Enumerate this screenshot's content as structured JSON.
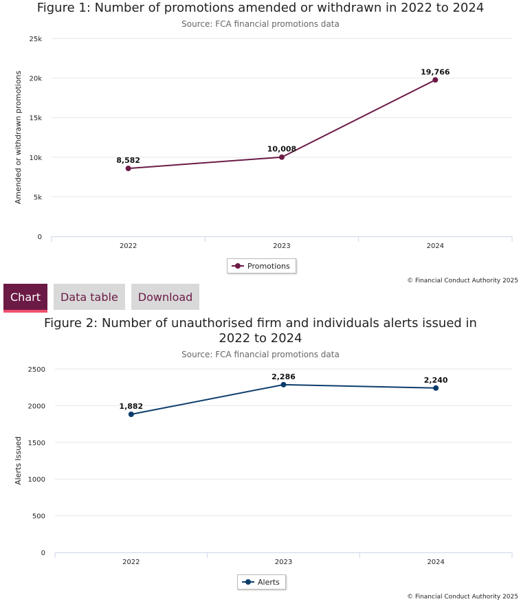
{
  "figure1": {
    "title": "Figure 1: Number of promotions amended or withdrawn in 2022 to 2024",
    "subtitle": "Source: FCA financial promotions data",
    "credit": "© Financial Conduct Authority 2025",
    "legend_label": "Promotions"
  },
  "tabs": {
    "chart": "Chart",
    "data_table": "Data table",
    "download": "Download"
  },
  "figure2": {
    "title_line1": "Figure 2: Number of unauthorised firm and individuals alerts issued in",
    "title_line2": "2022 to 2024",
    "subtitle": "Source: FCA financial promotions data",
    "credit": "© Financial Conduct Authority 2025",
    "legend_label": "Alerts"
  },
  "chart_data": [
    {
      "type": "line",
      "title": "Figure 1: Number of promotions amended or withdrawn in 2022 to 2024",
      "subtitle": "Source: FCA financial promotions data",
      "xlabel": "",
      "ylabel": "Amended or withdrawn promotions",
      "categories": [
        "2022",
        "2023",
        "2024"
      ],
      "ylim": [
        0,
        25000
      ],
      "yticks": [
        0,
        5000,
        10000,
        15000,
        20000,
        25000
      ],
      "ytick_labels": [
        "0",
        "5k",
        "10k",
        "15k",
        "20k",
        "25k"
      ],
      "series": [
        {
          "name": "Promotions",
          "values": [
            8582,
            10008,
            19766
          ],
          "labels": [
            "8,582",
            "10,008",
            "19,766"
          ],
          "color": "#6b1a45"
        }
      ],
      "grid": true,
      "legend": "bottom-center"
    },
    {
      "type": "line",
      "title": "Figure 2: Number of unauthorised firm and individuals alerts issued in 2022 to 2024",
      "subtitle": "Source: FCA financial promotions data",
      "xlabel": "",
      "ylabel": "Alerts Issued",
      "categories": [
        "2022",
        "2023",
        "2024"
      ],
      "ylim": [
        0,
        2500
      ],
      "yticks": [
        0,
        500,
        1000,
        1500,
        2000,
        2500
      ],
      "ytick_labels": [
        "0",
        "500",
        "1000",
        "1500",
        "2000",
        "2500"
      ],
      "series": [
        {
          "name": "Alerts",
          "values": [
            1882,
            2286,
            2240
          ],
          "labels": [
            "1,882",
            "2,286",
            "2,240"
          ],
          "color": "#0b3c6b"
        }
      ],
      "grid": true,
      "legend": "bottom-center"
    }
  ]
}
